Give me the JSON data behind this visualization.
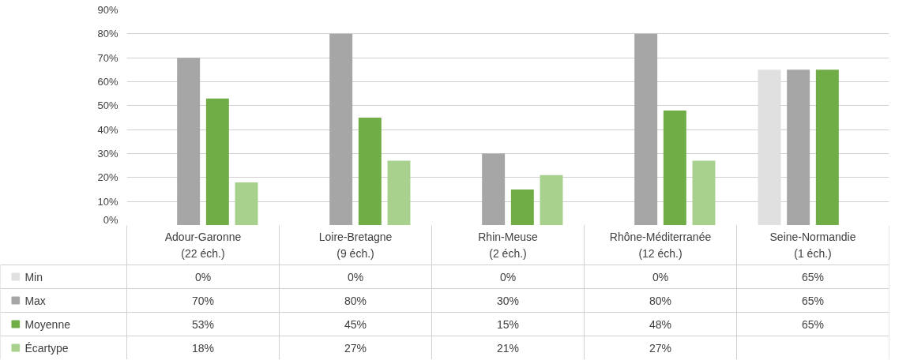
{
  "chart_data": {
    "type": "bar",
    "categories": [
      "Adour-Garonne\n(22 éch.)",
      "Loire-Bretagne\n(9 éch.)",
      "Rhin-Meuse\n(2 éch.)",
      "Rhône-Méditerranée\n(12 éch.)",
      "Seine-Normandie\n(1 éch.)"
    ],
    "series": [
      {
        "name": "Min",
        "color": "#e0e0e0",
        "values": [
          0,
          0,
          0,
          0,
          65
        ],
        "value_labels": [
          "0%",
          "0%",
          "0%",
          "0%",
          "65%"
        ]
      },
      {
        "name": "Max",
        "color": "#a6a6a6",
        "values": [
          70,
          80,
          30,
          80,
          65
        ],
        "value_labels": [
          "70%",
          "80%",
          "30%",
          "80%",
          "65%"
        ]
      },
      {
        "name": "Moyenne",
        "color": "#70ad47",
        "values": [
          53,
          45,
          15,
          48,
          65
        ],
        "value_labels": [
          "53%",
          "45%",
          "15%",
          "48%",
          "65%"
        ]
      },
      {
        "name": "Écartype",
        "color": "#a9d18e",
        "values": [
          18,
          27,
          21,
          27,
          null
        ],
        "value_labels": [
          "18%",
          "27%",
          "21%",
          "27%",
          null
        ]
      }
    ],
    "ylim": [
      0,
      90
    ],
    "yticks": [
      {
        "value": 0,
        "label": "0%"
      },
      {
        "value": 10,
        "label": "10%"
      },
      {
        "value": 20,
        "label": "20%"
      },
      {
        "value": 30,
        "label": "30%"
      },
      {
        "value": 40,
        "label": "40%"
      },
      {
        "value": 50,
        "label": "50%"
      },
      {
        "value": 60,
        "label": "60%"
      },
      {
        "value": 70,
        "label": "70%"
      },
      {
        "value": 80,
        "label": "80%"
      },
      {
        "value": 90,
        "label": "90%"
      }
    ],
    "grid": "y",
    "legend": "bottom"
  }
}
